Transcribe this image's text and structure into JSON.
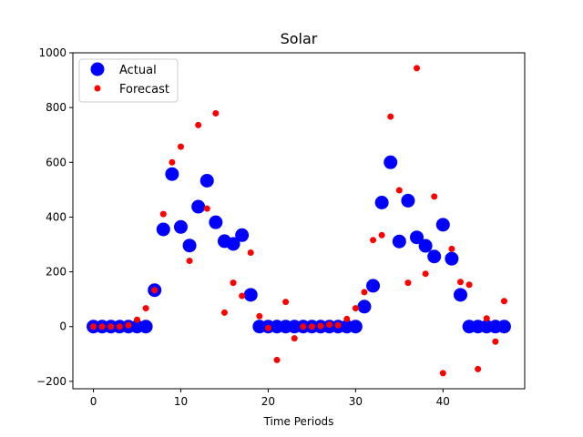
{
  "chart_data": {
    "type": "scatter",
    "title": "Solar",
    "xlabel": "Time Periods",
    "ylabel": "",
    "xlim": [
      -2.35,
      49.35
    ],
    "ylim": [
      -227,
      1000
    ],
    "x_ticks": [
      0,
      10,
      20,
      30,
      40
    ],
    "y_ticks": [
      -200,
      0,
      200,
      400,
      600,
      800,
      1000
    ],
    "grid": false,
    "legend_position": "top-left",
    "series": [
      {
        "name": "Actual",
        "color": "#0000ff",
        "marker": "large-circle",
        "x": [
          0,
          1,
          2,
          3,
          4,
          5,
          6,
          7,
          8,
          9,
          10,
          11,
          12,
          13,
          14,
          15,
          16,
          17,
          18,
          19,
          20,
          21,
          22,
          23,
          24,
          25,
          26,
          27,
          28,
          29,
          30,
          31,
          32,
          33,
          34,
          35,
          36,
          37,
          38,
          39,
          40,
          41,
          42,
          43,
          44,
          45,
          46,
          47
        ],
        "values": [
          0,
          0,
          0,
          0,
          0,
          0,
          0,
          133,
          355,
          557,
          364,
          296,
          438,
          533,
          381,
          312,
          302,
          334,
          116,
          0,
          0,
          0,
          0,
          0,
          0,
          0,
          0,
          0,
          0,
          0,
          0,
          73,
          149,
          453,
          600,
          311,
          460,
          326,
          295,
          256,
          372,
          248,
          116,
          0,
          0,
          0,
          0,
          0
        ]
      },
      {
        "name": "Forecast",
        "color": "#ff0000",
        "marker": "small-circle",
        "x": [
          0,
          1,
          2,
          3,
          4,
          5,
          6,
          7,
          8,
          9,
          10,
          11,
          12,
          13,
          14,
          15,
          16,
          17,
          18,
          19,
          20,
          21,
          22,
          23,
          24,
          25,
          26,
          27,
          28,
          29,
          30,
          31,
          32,
          33,
          34,
          35,
          36,
          37,
          38,
          39,
          40,
          41,
          42,
          43,
          44,
          45,
          46,
          47
        ],
        "values": [
          0,
          0,
          0,
          0,
          5,
          25,
          67,
          133,
          411,
          600,
          657,
          240,
          736,
          431,
          779,
          51,
          160,
          112,
          270,
          38,
          -5,
          -122,
          90,
          -43,
          0,
          0,
          2,
          7,
          5,
          28,
          67,
          126,
          316,
          334,
          767,
          498,
          160,
          944,
          193,
          475,
          -170,
          284,
          163,
          153,
          -155,
          30,
          -55,
          93
        ]
      }
    ]
  }
}
